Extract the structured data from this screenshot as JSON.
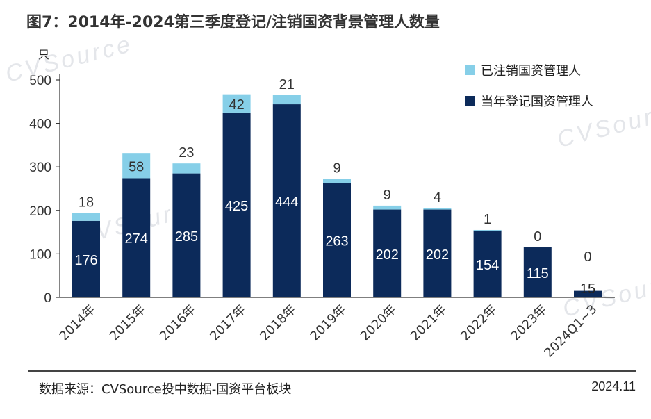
{
  "title": "图7：2014年-2024第三季度登记/注销国资背景管理人数量",
  "source": "数据来源：CVSource投中数据-国资平台板块",
  "date": "2024.11",
  "watermark": "CVSource",
  "colors": {
    "registered": "#0c2a5a",
    "deregistered": "#86cfe8",
    "axis": "#333333",
    "title": "#333333"
  },
  "chart_data": {
    "type": "bar",
    "stacked": true,
    "y_unit": "只",
    "ylim": [
      0,
      500
    ],
    "yticks": [
      0,
      100,
      200,
      300,
      400,
      500
    ],
    "categories": [
      "2014年",
      "2015年",
      "2016年",
      "2017年",
      "2018年",
      "2019年",
      "2020年",
      "2021年",
      "2022年",
      "2023年",
      "2024Q1~3"
    ],
    "series": [
      {
        "name": "当年登记国资管理人",
        "key": "registered",
        "values": [
          176,
          274,
          285,
          425,
          444,
          263,
          202,
          202,
          154,
          115,
          15
        ]
      },
      {
        "name": "已注销国资管理人",
        "key": "deregistered",
        "values": [
          18,
          58,
          23,
          42,
          21,
          9,
          9,
          4,
          1,
          0,
          0
        ]
      }
    ],
    "legend_position": "top-right",
    "grid": false
  }
}
